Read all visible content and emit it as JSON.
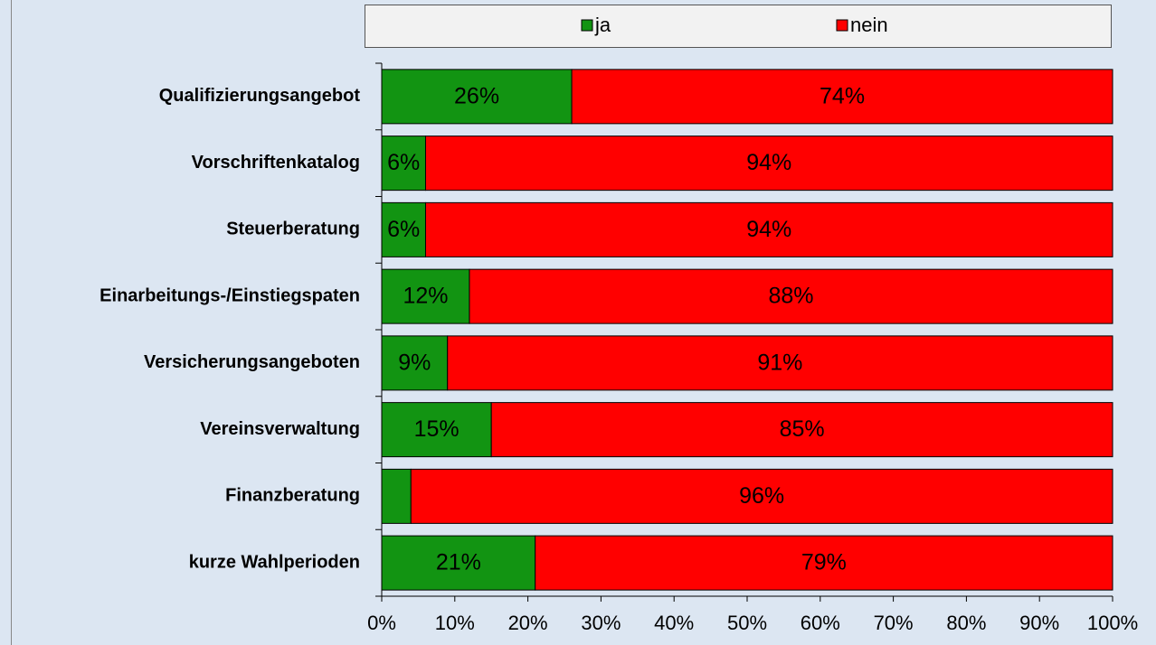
{
  "chart_data": {
    "type": "stacked-bar-horizontal",
    "categories": [
      "Qualifizierungsangebot",
      "Vorschriftenkatalog",
      "Steuerberatung",
      "Einarbeitungs-/Einstiegspaten",
      "Versicherungsangeboten",
      "Vereinsverwaltung",
      "Finanzberatung",
      "kurze Wahlperioden"
    ],
    "series": [
      {
        "name": "ja",
        "color": "#129412",
        "values": [
          26,
          6,
          6,
          12,
          9,
          15,
          4,
          21
        ],
        "value_labels": [
          "26%",
          "6%",
          "6%",
          "12%",
          "9%",
          "15%",
          null,
          "21%"
        ]
      },
      {
        "name": "nein",
        "color": "#ff0000",
        "values": [
          74,
          94,
          94,
          88,
          91,
          85,
          96,
          79
        ],
        "value_labels": [
          "74%",
          "94%",
          "94%",
          "88%",
          "91%",
          "85%",
          "96%",
          "79%"
        ]
      }
    ],
    "xlim": [
      0,
      100
    ],
    "xticks": [
      {
        "value": 0,
        "label": "0%"
      },
      {
        "value": 10,
        "label": "10%"
      },
      {
        "value": 20,
        "label": "20%"
      },
      {
        "value": 30,
        "label": "30%"
      },
      {
        "value": 40,
        "label": "40%"
      },
      {
        "value": 50,
        "label": "50%"
      },
      {
        "value": 60,
        "label": "60%"
      },
      {
        "value": 70,
        "label": "70%"
      },
      {
        "value": 80,
        "label": "80%"
      },
      {
        "value": 90,
        "label": "90%"
      },
      {
        "value": 100,
        "label": "100%"
      }
    ],
    "legend": "top"
  }
}
